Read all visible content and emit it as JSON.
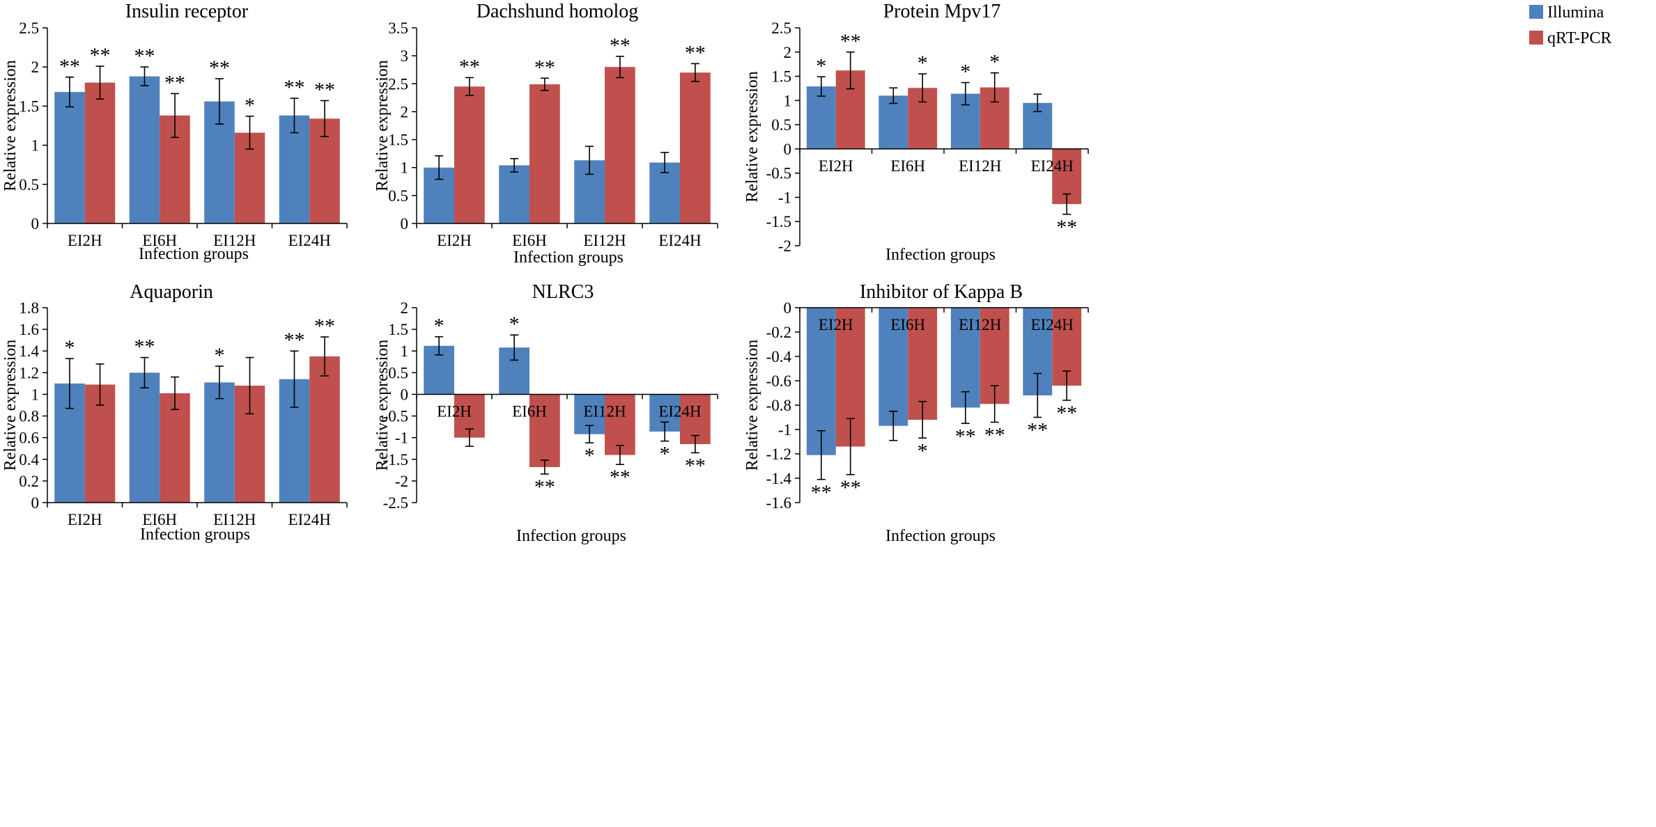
{
  "figure": {
    "legend": [
      {
        "name": "Illumina",
        "color": "#4f81bd"
      },
      {
        "name": "qRT-PCR",
        "color": "#c0504d"
      }
    ]
  },
  "chart_data": [
    {
      "type": "bar",
      "title": "Insulin receptor",
      "xlabel": "Infection groups",
      "ylabel": "Relative expression",
      "ylim": [
        0,
        2.5
      ],
      "yticks": [
        0,
        0.5,
        1,
        1.5,
        2,
        2.5
      ],
      "ytick_labels": [
        "0",
        "0.5",
        "1",
        "1.5",
        "2",
        "2.5"
      ],
      "categories": [
        "EI2H",
        "EI6H",
        "EI12H",
        "EI24H"
      ],
      "series": [
        {
          "name": "Illumina",
          "values": [
            1.68,
            1.88,
            1.56,
            1.38
          ],
          "errors": [
            0.19,
            0.12,
            0.29,
            0.22
          ],
          "stars": [
            "**",
            "**",
            "**",
            "**"
          ]
        },
        {
          "name": "qRT-PCR",
          "values": [
            1.8,
            1.38,
            1.16,
            1.34
          ],
          "errors": [
            0.21,
            0.28,
            0.21,
            0.23
          ],
          "stars": [
            "**",
            "**",
            "*",
            "**"
          ]
        }
      ]
    },
    {
      "type": "bar",
      "title": "Dachshund homolog",
      "xlabel": "Infection groups",
      "ylabel": "Relative expression",
      "ylim": [
        0,
        3.5
      ],
      "yticks": [
        0,
        0.5,
        1,
        1.5,
        2,
        2.5,
        3,
        3.5
      ],
      "ytick_labels": [
        "0",
        "0.5",
        "1",
        "1.5",
        "2",
        "2.5",
        "3",
        "3.5"
      ],
      "categories": [
        "EI2H",
        "EI6H",
        "EI12H",
        "EI24H"
      ],
      "series": [
        {
          "name": "Illumina",
          "values": [
            1.0,
            1.04,
            1.13,
            1.09
          ],
          "errors": [
            0.21,
            0.12,
            0.25,
            0.18
          ],
          "stars": [
            "",
            "",
            "",
            ""
          ]
        },
        {
          "name": "qRT-PCR",
          "values": [
            2.45,
            2.49,
            2.8,
            2.7
          ],
          "errors": [
            0.16,
            0.11,
            0.19,
            0.16
          ],
          "stars": [
            "**",
            "**",
            "**",
            "**"
          ]
        }
      ]
    },
    {
      "type": "bar",
      "title": "Protein Mpv17",
      "xlabel": "Infection groups",
      "ylabel": "Relative expression",
      "ylim": [
        -2,
        2.5
      ],
      "yticks": [
        -2,
        -1.5,
        -1,
        -0.5,
        0,
        0.5,
        1,
        1.5,
        2,
        2.5
      ],
      "ytick_labels": [
        "-2",
        "-1.5",
        "-1",
        "-0.5",
        "0",
        "0.5",
        "1",
        "1.5",
        "2",
        "2.5"
      ],
      "categories": [
        "EI2H",
        "EI6H",
        "EI12H",
        "EI24H"
      ],
      "series": [
        {
          "name": "Illumina",
          "values": [
            1.29,
            1.1,
            1.14,
            0.95
          ],
          "errors": [
            0.2,
            0.16,
            0.23,
            0.18
          ],
          "stars": [
            "*",
            "",
            "*",
            ""
          ]
        },
        {
          "name": "qRT-PCR",
          "values": [
            1.62,
            1.26,
            1.27,
            -1.14
          ],
          "errors": [
            0.38,
            0.29,
            0.3,
            0.21
          ],
          "stars": [
            "**",
            "*",
            "*",
            "**"
          ]
        }
      ]
    },
    {
      "type": "bar",
      "title": "Aquaporin",
      "xlabel": "Infection groups",
      "ylabel": "Relative expression",
      "ylim": [
        0,
        1.8
      ],
      "yticks": [
        0,
        0.2,
        0.4,
        0.6,
        0.8,
        1,
        1.2,
        1.4,
        1.6,
        1.8
      ],
      "ytick_labels": [
        "0",
        "0.2",
        "0.4",
        "0.6",
        "0.8",
        "1",
        "1.2",
        "1.4",
        "1.6",
        "1.8"
      ],
      "categories": [
        "EI2H",
        "EI6H",
        "EI12H",
        "EI24H"
      ],
      "series": [
        {
          "name": "Illumina",
          "values": [
            1.1,
            1.2,
            1.11,
            1.14
          ],
          "errors": [
            0.23,
            0.14,
            0.15,
            0.26
          ],
          "stars": [
            "*",
            "**",
            "*",
            "**"
          ]
        },
        {
          "name": "qRT-PCR",
          "values": [
            1.09,
            1.01,
            1.08,
            1.35
          ],
          "errors": [
            0.19,
            0.15,
            0.26,
            0.18
          ],
          "stars": [
            "",
            "",
            "",
            "**"
          ]
        }
      ]
    },
    {
      "type": "bar",
      "title": "NLRC3",
      "xlabel": "Infection groups",
      "ylabel": "Relative expression",
      "ylim": [
        -2.5,
        2
      ],
      "yticks": [
        -2.5,
        -2,
        -1.5,
        -1,
        -0.5,
        0,
        0.5,
        1,
        1.5,
        2
      ],
      "ytick_labels": [
        "-2.5",
        "-2",
        "-1.5",
        "-1",
        "-0.5",
        "0",
        "0.5",
        "1",
        "1.5",
        "2"
      ],
      "categories": [
        "EI2H",
        "EI6H",
        "EI12H",
        "EI24H"
      ],
      "series": [
        {
          "name": "Illumina",
          "values": [
            1.12,
            1.08,
            -0.92,
            -0.86
          ],
          "errors": [
            0.21,
            0.29,
            0.2,
            0.22
          ],
          "stars": [
            "*",
            "*",
            "*",
            "*"
          ]
        },
        {
          "name": "qRT-PCR",
          "values": [
            -1.0,
            -1.68,
            -1.4,
            -1.15
          ],
          "errors": [
            0.2,
            0.16,
            0.22,
            0.2
          ],
          "stars": [
            "",
            "**",
            "**",
            "**"
          ]
        }
      ]
    },
    {
      "type": "bar",
      "title": "Inhibitor  of Kappa B",
      "xlabel": "Infection groups",
      "ylabel": "Relative expression",
      "ylim": [
        -1.6,
        0
      ],
      "yticks": [
        -1.6,
        -1.4,
        -1.2,
        -1,
        -0.8,
        -0.6,
        -0.4,
        -0.2,
        0
      ],
      "ytick_labels": [
        "-1.6",
        "-1.4",
        "-1.2",
        "-1",
        "-0.8",
        "-0.6",
        "-0.4",
        "-0.2",
        "0"
      ],
      "categories": [
        "EI2H",
        "EI6H",
        "EI12H",
        "EI24H"
      ],
      "series": [
        {
          "name": "Illumina",
          "values": [
            -1.21,
            -0.97,
            -0.82,
            -0.72
          ],
          "errors": [
            0.2,
            0.12,
            0.13,
            0.18
          ],
          "stars": [
            "**",
            "",
            "**",
            "**"
          ]
        },
        {
          "name": "qRT-PCR",
          "values": [
            -1.14,
            -0.92,
            -0.79,
            -0.64
          ],
          "errors": [
            0.23,
            0.15,
            0.15,
            0.12
          ],
          "stars": [
            "**",
            "*",
            "**",
            "**"
          ]
        }
      ]
    }
  ]
}
